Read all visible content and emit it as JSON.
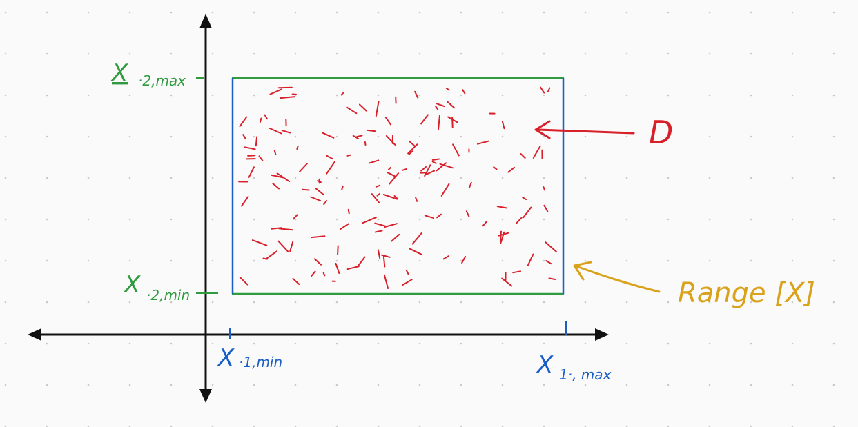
{
  "colors": {
    "axis": "#111111",
    "x1_bound": "#1a5fc8",
    "x2_bound": "#2f9a3e",
    "domain_region": "#d8202a",
    "range_label": "#d9a21a",
    "grid_dot": "#c9c9c9",
    "background": "#fafafa"
  },
  "labels": {
    "x2_max": {
      "main": "X",
      "sub": "·2,max"
    },
    "x2_min": {
      "main": "X",
      "sub": "·2,min"
    },
    "x1_min": {
      "main": "X",
      "sub": "·1,min"
    },
    "x1_max": {
      "main": "X",
      "sub": "1·, max"
    },
    "domain": "D",
    "range": "Range [X]"
  }
}
